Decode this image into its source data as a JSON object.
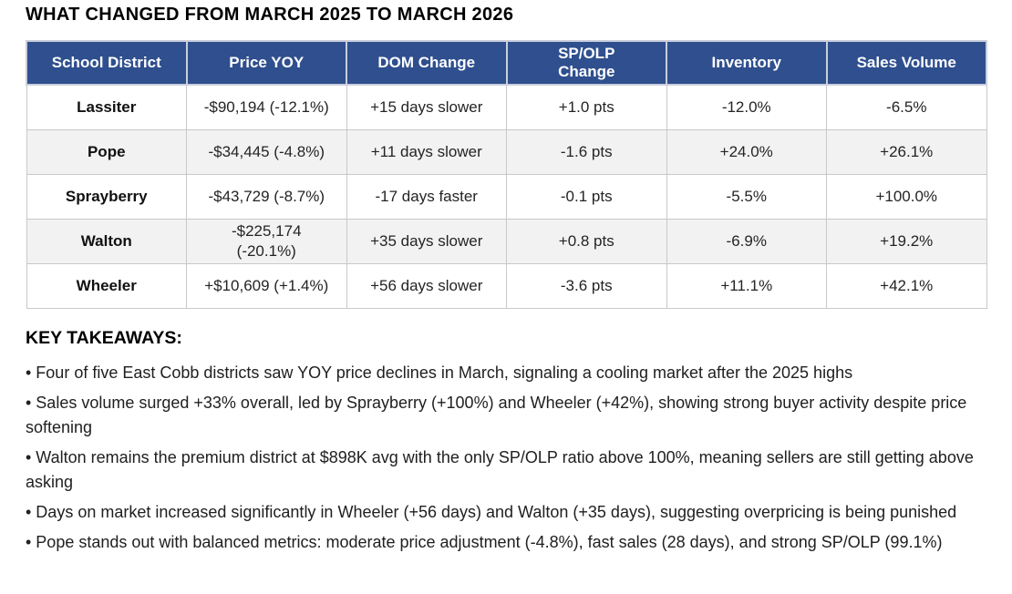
{
  "title": "WHAT CHANGED FROM MARCH 2025 TO MARCH 2026",
  "colors": {
    "header_bg": "#2F4F8E",
    "header_text": "#FFFFFF",
    "row_alt_bg": "#F2F2F2",
    "border": "#C9C9C9"
  },
  "table": {
    "headers": [
      "School District",
      "Price YOY",
      "DOM Change",
      "SP/OLP\nChange",
      "Inventory",
      "Sales Volume"
    ],
    "rows": [
      {
        "district": "Lassiter",
        "price_yoy": "-$90,194 (-12.1%)",
        "dom_change": "+15 days slower",
        "sp_olp_change": "+1.0 pts",
        "inventory": "-12.0%",
        "sales_volume": "-6.5%"
      },
      {
        "district": "Pope",
        "price_yoy": "-$34,445 (-4.8%)",
        "dom_change": "+11 days slower",
        "sp_olp_change": "-1.6 pts",
        "inventory": "+24.0%",
        "sales_volume": "+26.1%"
      },
      {
        "district": "Sprayberry",
        "price_yoy": "-$43,729 (-8.7%)",
        "dom_change": "-17 days faster",
        "sp_olp_change": "-0.1 pts",
        "inventory": "-5.5%",
        "sales_volume": "+100.0%"
      },
      {
        "district": "Walton",
        "price_yoy": "-$225,174\n(-20.1%)",
        "dom_change": "+35 days slower",
        "sp_olp_change": "+0.8 pts",
        "inventory": "-6.9%",
        "sales_volume": "+19.2%"
      },
      {
        "district": "Wheeler",
        "price_yoy": "+$10,609 (+1.4%)",
        "dom_change": "+56 days slower",
        "sp_olp_change": "-3.6 pts",
        "inventory": "+11.1%",
        "sales_volume": "+42.1%"
      }
    ]
  },
  "takeaways": {
    "heading": "KEY TAKEAWAYS:",
    "items": [
      "• Four of five East Cobb districts saw YOY price declines in March, signaling a cooling market after the 2025 highs",
      "• Sales volume surged +33% overall, led by Sprayberry (+100%) and Wheeler (+42%), showing strong buyer activity despite price softening",
      "• Walton remains the premium district at $898K avg with the only SP/OLP ratio above 100%, meaning sellers are still getting above asking",
      "• Days on market increased significantly in Wheeler (+56 days) and Walton (+35 days), suggesting overpricing is being punished",
      "• Pope stands out with balanced metrics: moderate price adjustment (-4.8%), fast sales (28 days), and strong SP/OLP (99.1%)"
    ]
  }
}
